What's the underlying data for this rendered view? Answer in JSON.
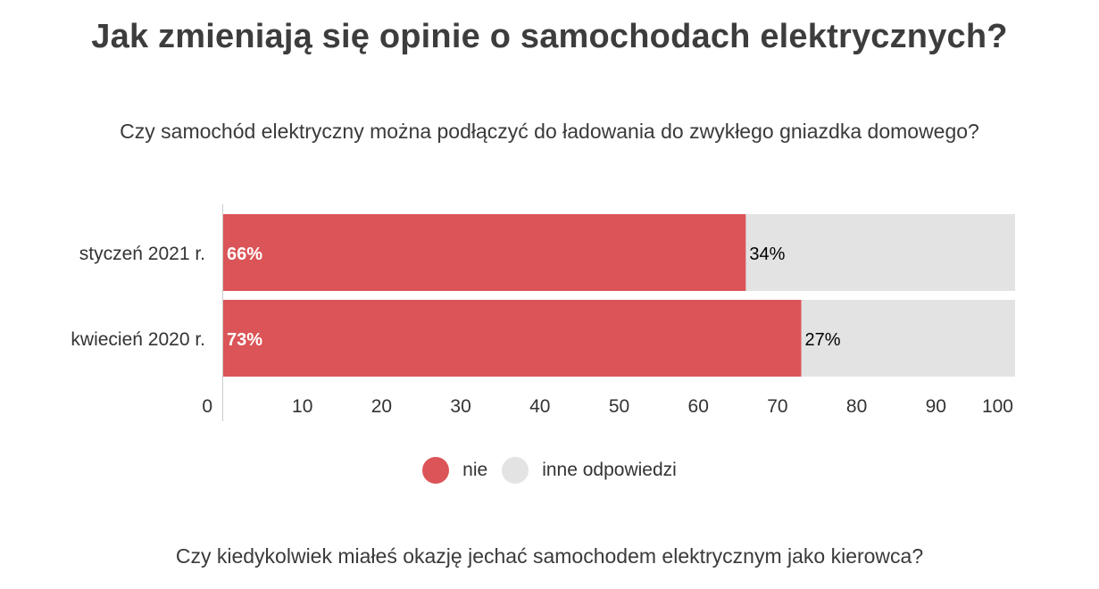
{
  "page": {
    "title": "Jak zmieniają się opinie o samochodach elektrycznych?",
    "question_1": "Czy samochód elektryczny można podłączyć do ładowania do zwykłego gniazdka domowego?",
    "question_2": "Czy kiedykolwiek miałeś okazję jechać samochodem elektrycznym jako kierowca?"
  },
  "chart_data": {
    "type": "bar",
    "orientation": "horizontal",
    "stacked": true,
    "title": "Czy samochód elektryczny można podłączyć do ładowania do zwykłego gniazdka domowego?",
    "categories": [
      "styczeń 2021 r.",
      "kwiecień 2020 r."
    ],
    "series": [
      {
        "name": "nie",
        "values": [
          66,
          73
        ],
        "labels": [
          "66%",
          "73%"
        ],
        "color": "#db5457",
        "label_color": "#ffffff"
      },
      {
        "name": "inne odpowiedzi",
        "values": [
          34,
          27
        ],
        "labels": [
          "34%",
          "27%"
        ],
        "color": "#e3e3e3",
        "label_color": "#000000"
      }
    ],
    "xlim": [
      0,
      100
    ],
    "xticks": [
      "0",
      "10",
      "20",
      "30",
      "40",
      "50",
      "60",
      "70",
      "80",
      "90",
      "100"
    ],
    "grid": false,
    "legend_position": "bottom"
  }
}
